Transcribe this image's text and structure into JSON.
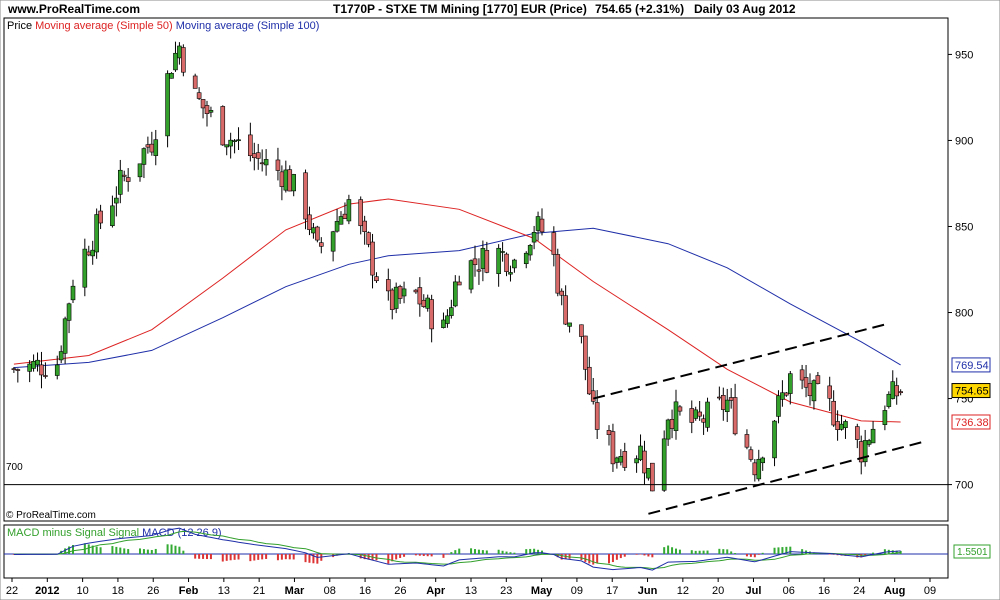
{
  "header": {
    "site": "www.ProRealTime.com",
    "instrument": "T1770P - STXE TM Mining [1770] EUR (Price)",
    "last": "754.65 (+2.31%)",
    "period": "Daily  03 Aug 2012"
  },
  "price_panel": {
    "legend_price": "Price",
    "legend_ma50": "Moving average (Simple 50)",
    "legend_ma100": "Moving average (Simple 100)",
    "level_label": "700",
    "copyright": "© ProRealTime.com"
  },
  "macd_panel": {
    "legend_a": "MACD minus Signal",
    "legend_b": "Signal",
    "legend_c": "MACD (12 26 9)",
    "badge": "1.5501"
  },
  "colors": {
    "up": "#33a02c",
    "down": "#d96a6a",
    "ma50": "#dd2222",
    "ma100": "#1f2fa8",
    "macd_hist_pos": "#33aa33",
    "macd_hist_neg": "#dd3333"
  },
  "chart_data": {
    "type": "candlestick",
    "y_ticks": [
      700,
      750,
      800,
      850,
      900,
      950
    ],
    "ylim": [
      680,
      970
    ],
    "x_tick_labels": [
      "22",
      "2012",
      "10",
      "18",
      "26",
      "Feb",
      "13",
      "21",
      "Mar",
      "08",
      "16",
      "26",
      "Apr",
      "13",
      "23",
      "May",
      "09",
      "17",
      "Jun",
      "12",
      "20",
      "Jul",
      "06",
      "16",
      "24",
      "Aug",
      "09"
    ],
    "badges": [
      {
        "series": "Moving average (Simple 100)",
        "value": "769.54",
        "color": "#1f2fa8"
      },
      {
        "series": "Price",
        "value": "754.65",
        "color": "#ffd700"
      },
      {
        "series": "Moving average (Simple 50)",
        "value": "736.38",
        "color": "#dd2222"
      }
    ],
    "horizontal_line": 700,
    "trendlines": [
      {
        "from": [
          "17 May 2012",
          750
        ],
        "to": [
          "30 Jul 2012",
          793
        ]
      },
      {
        "from": [
          "31 May 2012",
          683
        ],
        "to": [
          "09 Aug 2012",
          725
        ]
      }
    ],
    "close_path": [
      [
        "22 Dec 2011",
        767
      ],
      [
        "02 Jan 2012",
        771
      ],
      [
        "06 Jan 2012",
        820
      ],
      [
        "10 Jan 2012",
        840
      ],
      [
        "18 Jan 2012",
        875
      ],
      [
        "26 Jan 2012",
        900
      ],
      [
        "31 Jan 2012",
        945
      ],
      [
        "02 Feb 2012",
        955
      ],
      [
        "06 Feb 2012",
        925
      ],
      [
        "13 Feb 2012",
        905
      ],
      [
        "21 Feb 2012",
        890
      ],
      [
        "29 Feb 2012",
        880
      ],
      [
        "05 Mar 2012",
        860
      ],
      [
        "08 Mar 2012",
        835
      ],
      [
        "16 Mar 2012",
        865
      ],
      [
        "20 Mar 2012",
        840
      ],
      [
        "26 Mar 2012",
        805
      ],
      [
        "02 Apr 2012",
        810
      ],
      [
        "09 Apr 2012",
        790
      ],
      [
        "13 Apr 2012",
        825
      ],
      [
        "23 Apr 2012",
        835
      ],
      [
        "27 Apr 2012",
        830
      ],
      [
        "02 May 2012",
        850
      ],
      [
        "06 May 2012",
        845
      ],
      [
        "09 May 2012",
        805
      ],
      [
        "14 May 2012",
        782
      ],
      [
        "17 May 2012",
        740
      ],
      [
        "22 May 2012",
        718
      ],
      [
        "29 May 2012",
        720
      ],
      [
        "01 Jun 2012",
        700
      ],
      [
        "05 Jun 2012",
        742
      ],
      [
        "12 Jun 2012",
        735
      ],
      [
        "20 Jun 2012",
        748
      ],
      [
        "27 Jun 2012",
        712
      ],
      [
        "02 Jul 2012",
        740
      ],
      [
        "06 Jul 2012",
        762
      ],
      [
        "16 Jul 2012",
        745
      ],
      [
        "24 Jul 2012",
        720
      ],
      [
        "30 Jul 2012",
        748
      ],
      [
        "03 Aug 2012",
        754.65
      ]
    ],
    "ma50_path": [
      [
        "22 Dec 2011",
        770
      ],
      [
        "10 Jan 2012",
        775
      ],
      [
        "26 Jan 2012",
        790
      ],
      [
        "13 Feb 2012",
        820
      ],
      [
        "29 Feb 2012",
        848
      ],
      [
        "16 Mar 2012",
        863
      ],
      [
        "26 Mar 2012",
        866
      ],
      [
        "13 Apr 2012",
        860
      ],
      [
        "02 May 2012",
        843
      ],
      [
        "17 May 2012",
        818
      ],
      [
        "05 Jun 2012",
        790
      ],
      [
        "20 Jun 2012",
        767
      ],
      [
        "06 Jul 2012",
        748
      ],
      [
        "24 Jul 2012",
        737
      ],
      [
        "03 Aug 2012",
        736.38
      ]
    ],
    "ma100_path": [
      [
        "22 Dec 2011",
        768
      ],
      [
        "10 Jan 2012",
        771
      ],
      [
        "26 Jan 2012",
        778
      ],
      [
        "13 Feb 2012",
        797
      ],
      [
        "29 Feb 2012",
        815
      ],
      [
        "16 Mar 2012",
        828
      ],
      [
        "26 Mar 2012",
        833
      ],
      [
        "13 Apr 2012",
        836
      ],
      [
        "02 May 2012",
        846
      ],
      [
        "17 May 2012",
        849
      ],
      [
        "05 Jun 2012",
        840
      ],
      [
        "20 Jun 2012",
        826
      ],
      [
        "06 Jul 2012",
        805
      ],
      [
        "24 Jul 2012",
        783
      ],
      [
        "03 Aug 2012",
        769.54
      ]
    ]
  }
}
